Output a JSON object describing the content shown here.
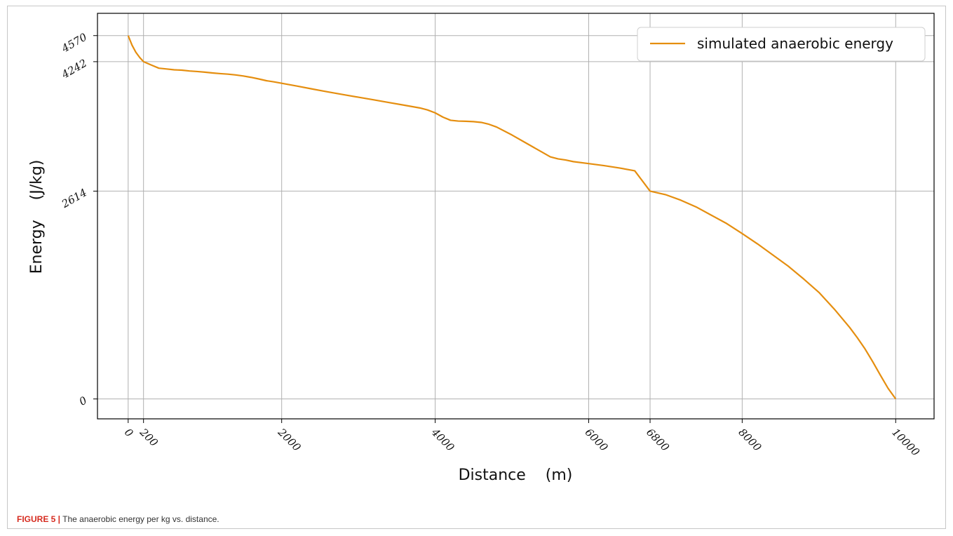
{
  "caption": {
    "label": "FIGURE 5 |",
    "text": " The anaerobic energy per kg vs. distance."
  },
  "chart_data": {
    "type": "line",
    "xlabel": "Distance    (m)",
    "ylabel": "Energy    (J/kg)",
    "xlim": [
      -400,
      10500
    ],
    "ylim": [
      -250,
      4850
    ],
    "x_ticks": [
      0,
      200,
      2000,
      4000,
      6000,
      6800,
      8000,
      10000
    ],
    "x_tick_labels": [
      "0",
      "200",
      "2000",
      "4000",
      "6000",
      "6800",
      "8000",
      "10000"
    ],
    "y_ticks": [
      0,
      2614,
      4242,
      4570
    ],
    "y_tick_labels": [
      "0",
      "2614",
      "4242",
      "4570"
    ],
    "grid": true,
    "legend_position": "top-right",
    "colors": {
      "line": "#e58e0f",
      "grid": "#b0b0b0",
      "axes": "#000000",
      "caption_accent": "#d62b1f"
    },
    "series": [
      {
        "name": "simulated anaerobic energy",
        "x": [
          0,
          50,
          100,
          150,
          200,
          300,
          400,
          500,
          600,
          700,
          800,
          900,
          1000,
          1100,
          1200,
          1300,
          1400,
          1500,
          1600,
          1700,
          1800,
          1900,
          2000,
          2200,
          2400,
          2600,
          2800,
          3000,
          3200,
          3400,
          3600,
          3800,
          3900,
          4000,
          4100,
          4200,
          4300,
          4400,
          4500,
          4600,
          4700,
          4800,
          5000,
          5200,
          5400,
          5500,
          5600,
          5700,
          5800,
          6000,
          6200,
          6400,
          6600,
          6800,
          7000,
          7200,
          7400,
          7600,
          7800,
          8000,
          8200,
          8400,
          8600,
          8800,
          9000,
          9200,
          9400,
          9500,
          9600,
          9700,
          9800,
          9900,
          10000
        ],
        "values": [
          4570,
          4450,
          4360,
          4295,
          4242,
          4200,
          4160,
          4150,
          4140,
          4135,
          4125,
          4118,
          4110,
          4100,
          4092,
          4085,
          4075,
          4062,
          4045,
          4025,
          4003,
          3988,
          3970,
          3935,
          3898,
          3862,
          3828,
          3795,
          3762,
          3728,
          3694,
          3660,
          3635,
          3598,
          3545,
          3505,
          3495,
          3492,
          3488,
          3478,
          3455,
          3420,
          3320,
          3210,
          3100,
          3045,
          3020,
          3005,
          2985,
          2960,
          2935,
          2905,
          2870,
          2614,
          2570,
          2500,
          2415,
          2310,
          2205,
          2080,
          1950,
          1810,
          1670,
          1510,
          1340,
          1130,
          900,
          770,
          630,
          470,
          300,
          135,
          0
        ]
      }
    ]
  }
}
